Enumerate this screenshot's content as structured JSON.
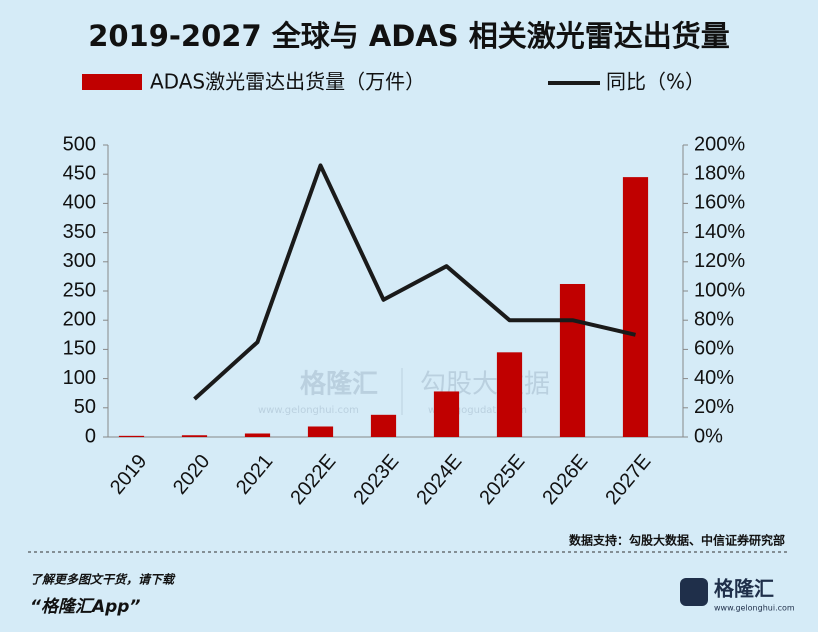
{
  "chart_data": {
    "type": "bar_line",
    "title": "2019-2027 全球与 ADAS 相关激光雷达出货量",
    "categories": [
      "2019",
      "2020",
      "2021",
      "2022E",
      "2023E",
      "2024E",
      "2025E",
      "2026E",
      "2027E"
    ],
    "series": [
      {
        "name": "ADAS激光雷达出货量（万件）",
        "type": "bar",
        "color": "#c00000",
        "values": [
          2,
          3,
          6,
          18,
          38,
          78,
          145,
          262,
          445
        ]
      },
      {
        "name": "同比（%）",
        "type": "line",
        "axis": "y2",
        "color": "#1a1a1a",
        "values": [
          null,
          26,
          65,
          186,
          94,
          117,
          80,
          80,
          70
        ]
      }
    ],
    "ylim": [
      0,
      500
    ],
    "yticks": [
      0,
      50,
      100,
      150,
      200,
      250,
      300,
      350,
      400,
      450,
      500
    ],
    "y2lim": [
      0,
      200
    ],
    "y2ticks": [
      {
        "value": 0,
        "label": "0%"
      },
      {
        "value": 20,
        "label": "20%"
      },
      {
        "value": 40,
        "label": "40%"
      },
      {
        "value": 60,
        "label": "60%"
      },
      {
        "value": 80,
        "label": "80%"
      },
      {
        "value": 100,
        "label": "100%"
      },
      {
        "value": 120,
        "label": "120%"
      },
      {
        "value": 140,
        "label": "140%"
      },
      {
        "value": 160,
        "label": "160%"
      },
      {
        "value": 180,
        "label": "180%"
      },
      {
        "value": 200,
        "label": "200%"
      }
    ]
  },
  "source": "数据支持：勾股大数据、中信证券研究部",
  "footer": {
    "line1": "了解更多图文干货，请下载",
    "line2": "“格隆汇App”",
    "logo": "格隆汇",
    "url": "www.gelonghui.com"
  },
  "watermark": {
    "brand1": "格隆汇",
    "url1": "www.gelonghui.com",
    "brand2": "勾股大数据",
    "url2": "www.gogudata.com"
  }
}
